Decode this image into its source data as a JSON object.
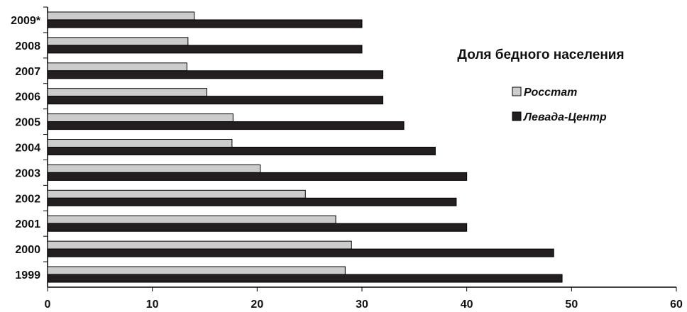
{
  "chart_data": {
    "type": "bar",
    "orientation": "horizontal",
    "title": "Доля бедного населения",
    "categories": [
      "2009*",
      "2008",
      "2007",
      "2006",
      "2005",
      "2004",
      "2003",
      "2002",
      "2001",
      "2000",
      "1999"
    ],
    "series": [
      {
        "name": "Росстат",
        "color": "#cccccc",
        "values": [
          14.0,
          13.4,
          13.3,
          15.2,
          17.7,
          17.6,
          20.3,
          24.6,
          27.5,
          29.0,
          28.4
        ]
      },
      {
        "name": "Левада-Центр",
        "color": "#231f20",
        "values": [
          30.0,
          30.0,
          32.0,
          32.0,
          34.0,
          37.0,
          40.0,
          39.0,
          40.0,
          48.3,
          49.1
        ]
      }
    ],
    "xlim": [
      0,
      60
    ],
    "xticks": [
      0,
      10,
      20,
      30,
      40,
      50,
      60
    ],
    "grid": false,
    "legend_position": "right"
  }
}
